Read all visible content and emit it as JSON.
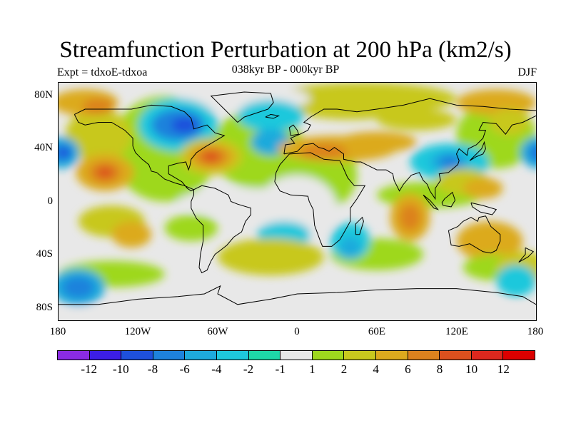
{
  "title": "Streamfunction Perturbation at 200 hPa (km2/s)",
  "subtitle": "038kyr BP - 000kyr BP",
  "left_string": "Expt = tdxoE-tdxoa",
  "right_string": "DJF",
  "map": {
    "projection": "cylindrical-equidistant",
    "lon_range": [
      -180,
      180
    ],
    "lat_range": [
      -90,
      90
    ],
    "y_ticks": [
      "80N",
      "40N",
      "0",
      "40S",
      "80S"
    ],
    "x_ticks": [
      "180",
      "120W",
      "60W",
      "0",
      "60E",
      "120E",
      "180"
    ],
    "features": [
      {
        "label": "North Atlantic / eastern North America positive centre",
        "lon": -65,
        "lat": 34,
        "level": 9
      },
      {
        "label": "North-central Pacific negative centre",
        "lon": -175,
        "lat": 37,
        "level": -8
      },
      {
        "label": "Subtropical east Pacific positive centre",
        "lon": -145,
        "lat": 22,
        "level": 8
      },
      {
        "label": "East Asia negative centre",
        "lon": 118,
        "lat": 30,
        "level": -7
      },
      {
        "label": "Canada negative centre",
        "lon": -85,
        "lat": 58,
        "level": -5
      },
      {
        "label": "Arctic Siberia positive band",
        "lon": 150,
        "lat": 75,
        "level": 5
      },
      {
        "label": "Indian Ocean positive centre",
        "lon": 85,
        "lat": -12,
        "level": 5
      },
      {
        "label": "South Pacific negative centre",
        "lon": -170,
        "lat": -65,
        "level": -4
      }
    ]
  },
  "colorbar": {
    "colors": [
      "#8a2be2",
      "#3c1ee6",
      "#1e50dc",
      "#1e82dc",
      "#1eaadc",
      "#1ec8dc",
      "#1ed8a8",
      "#e8e8e8",
      "#9ed81e",
      "#c8c81e",
      "#dcaa1e",
      "#dc821e",
      "#dc501e",
      "#dc281e",
      "#dc0000"
    ],
    "labels": [
      "-12",
      "-10",
      "-8",
      "-6",
      "-4",
      "-2",
      "-1",
      "1",
      "2",
      "4",
      "6",
      "8",
      "10",
      "12"
    ]
  }
}
